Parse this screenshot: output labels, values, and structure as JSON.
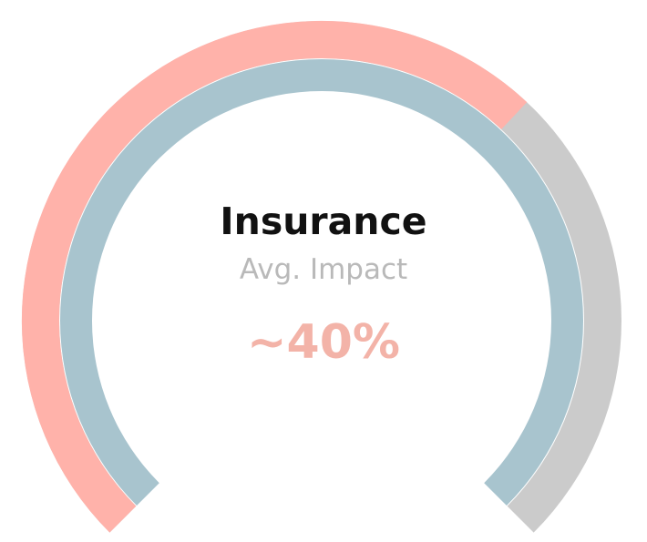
{
  "chart_data": {
    "type": "gauge",
    "title": "Insurance",
    "subtitle": "Avg. Impact",
    "value_label": "~40%",
    "value": 40,
    "outer_progress": 0.66,
    "rings": [
      {
        "name": "outer-track",
        "color": "#cbcbcb"
      },
      {
        "name": "outer-progress",
        "color": "#ffb2aa"
      },
      {
        "name": "inner-ring",
        "color": "#a8c4ce"
      }
    ]
  }
}
